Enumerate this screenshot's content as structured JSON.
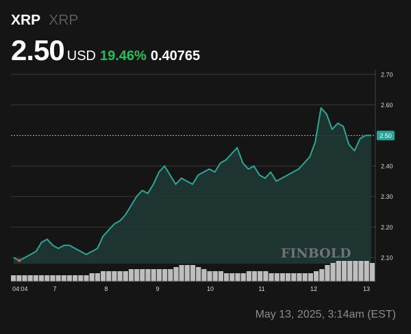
{
  "header": {
    "ticker": "XRP",
    "name": "XRP",
    "price": "2.50",
    "currency": "USD",
    "change_pct": "19.46%",
    "change_abs": "0.40765"
  },
  "watermark": "FINBOLD",
  "timestamp": "May 13, 2025, 3:14am (EST)",
  "colors": {
    "line": "#2aa897",
    "fill": "#1e3a36",
    "positive": "#21c05b",
    "price_tag": "#26a69a",
    "volume": "#d0d0d0",
    "grid": "#3a3a3a"
  },
  "chart_data": {
    "type": "area",
    "ylim": [
      2.08,
      2.72
    ],
    "yticks": [
      "2.70",
      "2.60",
      "2.50",
      "2.40",
      "2.30",
      "2.20",
      "2.10"
    ],
    "xlim": [
      0,
      25
    ],
    "xticks": [
      {
        "label": "04:04",
        "x": 0
      },
      {
        "label": "7",
        "x": 3.2
      },
      {
        "label": "8",
        "x": 7.2
      },
      {
        "label": "9",
        "x": 11.2
      },
      {
        "label": "10",
        "x": 15.2
      },
      {
        "label": "11",
        "x": 19.2
      },
      {
        "label": "12",
        "x": 23.2
      },
      {
        "label": "13",
        "x": 27.2
      }
    ],
    "current_price": "2.50",
    "current_value": 2.5,
    "start_value": 2.1,
    "series": [
      {
        "values": [
          2.1,
          2.09,
          2.1,
          2.11,
          2.12,
          2.15,
          2.16,
          2.14,
          2.13,
          2.14,
          2.14,
          2.13,
          2.12,
          2.11,
          2.12,
          2.13,
          2.17,
          2.19,
          2.21,
          2.22,
          2.24,
          2.27,
          2.3,
          2.32,
          2.31,
          2.34,
          2.38,
          2.4,
          2.37,
          2.34,
          2.36,
          2.35,
          2.34,
          2.37,
          2.38,
          2.39,
          2.38,
          2.41,
          2.42,
          2.44,
          2.46,
          2.41,
          2.39,
          2.4,
          2.37,
          2.36,
          2.38,
          2.35,
          2.36,
          2.37,
          2.38,
          2.39,
          2.41,
          2.43,
          2.48,
          2.59,
          2.57,
          2.52,
          2.54,
          2.53,
          2.47,
          2.45,
          2.49,
          2.5,
          2.5
        ]
      }
    ],
    "volume": [
      0.3,
      0.3,
      0.3,
      0.3,
      0.3,
      0.3,
      0.3,
      0.3,
      0.3,
      0.3,
      0.3,
      0.3,
      0.3,
      0.3,
      0.4,
      0.4,
      0.5,
      0.5,
      0.5,
      0.5,
      0.5,
      0.6,
      0.6,
      0.6,
      0.6,
      0.6,
      0.6,
      0.6,
      0.6,
      0.7,
      0.8,
      0.8,
      0.8,
      0.7,
      0.6,
      0.5,
      0.5,
      0.5,
      0.4,
      0.4,
      0.4,
      0.4,
      0.5,
      0.5,
      0.5,
      0.5,
      0.4,
      0.4,
      0.4,
      0.4,
      0.4,
      0.4,
      0.4,
      0.4,
      0.5,
      0.6,
      0.8,
      0.9,
      1.0,
      1.0,
      1.0,
      1.0,
      1.0,
      1.0,
      0.9
    ]
  }
}
